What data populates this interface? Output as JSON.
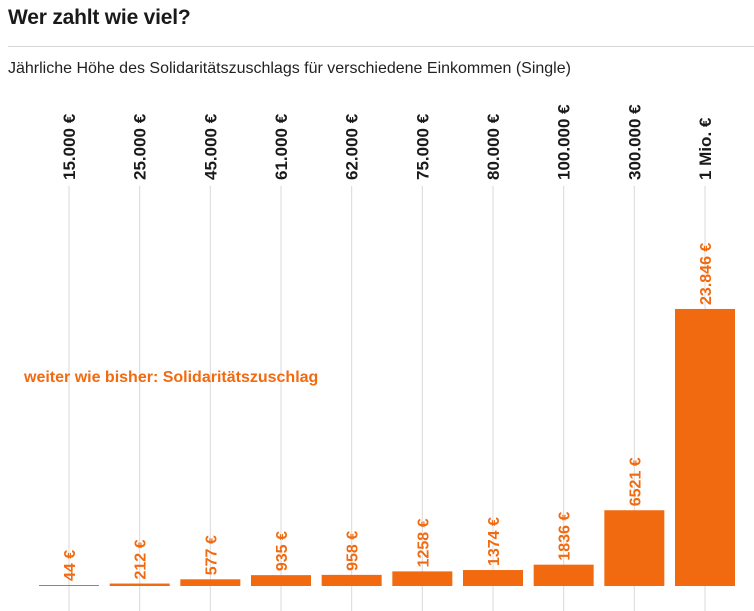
{
  "header": {
    "title": "Wer zahlt wie viel?",
    "subtitle": "Jährliche Höhe des Solidaritätszuschlags für verschiedene Einkommen (Single)"
  },
  "colors": {
    "bar": "#f26a10",
    "gridline": "#d9d9d9",
    "category_text": "#1a1a1a"
  },
  "chart_data": {
    "type": "bar",
    "categories": [
      "15.000 €",
      "25.000 €",
      "45.000 €",
      "61.000 €",
      "62.000 €",
      "75.000 €",
      "80.000 €",
      "100.000 €",
      "300.000 €",
      "1 Mio. €"
    ],
    "values": [
      44,
      212,
      577,
      935,
      958,
      1258,
      1374,
      1836,
      6521,
      23846
    ],
    "value_labels": [
      "44 €",
      "212 €",
      "577 €",
      "935 €",
      "958 €",
      "1258 €",
      "1374 €",
      "1836 €",
      "6521 €",
      "23.846 €"
    ],
    "annotation": "weiter wie bisher: Solidaritätszuschlag",
    "ylim": [
      0,
      34000
    ],
    "grid": true,
    "legend": "none"
  }
}
